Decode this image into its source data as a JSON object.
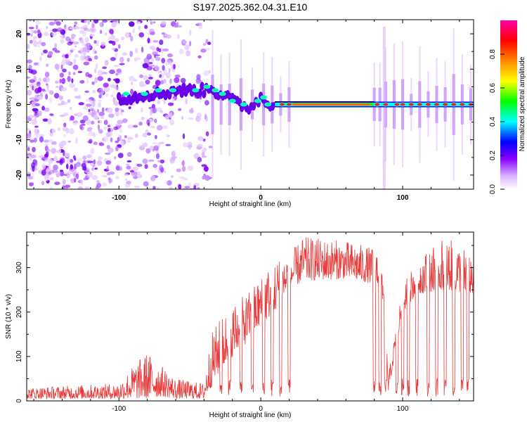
{
  "figure_title": "S197.2025.362.04.31.E10",
  "chart_data": [
    {
      "type": "heatmap",
      "name": "spectrogram",
      "xlabel": "Height of straight line (km)",
      "ylabel": "Frequency (Hz)",
      "xlim": [
        -165,
        150
      ],
      "ylim": [
        -24,
        24
      ],
      "xticks": [
        -100,
        0,
        100
      ],
      "xtick_labels": [
        "-100",
        "0",
        "100"
      ],
      "yticks": [
        20,
        10,
        0,
        -10,
        -20
      ],
      "ytick_labels": [
        "20",
        "10",
        "0",
        "-10",
        "-20"
      ],
      "colorbar": {
        "label": "Normalized spectral amplitude",
        "range": [
          0,
          1
        ],
        "ticks": [
          0.0,
          0.2,
          0.4,
          0.6,
          0.8
        ],
        "tick_labels": [
          "0.0",
          "0.2",
          "0.4",
          "0.6",
          "0.8"
        ],
        "colors": [
          "#ffffff",
          "#cc88ff",
          "#8800ff",
          "#0000ff",
          "#00ffff",
          "#00ff00",
          "#ffff00",
          "#ff8800",
          "#ff0000",
          "#ff00aa"
        ]
      },
      "description_features": {
        "noise_region_x": [
          -165,
          -40
        ],
        "carrier_region_x": [
          -40,
          150
        ],
        "steady_carrier_x": [
          15,
          80
        ],
        "carrier_track": [
          {
            "x": -100,
            "f": 2
          },
          {
            "x": -90,
            "f": 2
          },
          {
            "x": -80,
            "f": 3
          },
          {
            "x": -70,
            "f": 3
          },
          {
            "x": -60,
            "f": 4
          },
          {
            "x": -50,
            "f": 4
          },
          {
            "x": -40,
            "f": 4
          },
          {
            "x": -35,
            "f": 5
          },
          {
            "x": -30,
            "f": 3
          },
          {
            "x": -25,
            "f": 3
          },
          {
            "x": -20,
            "f": 1
          },
          {
            "x": -15,
            "f": 0
          },
          {
            "x": -10,
            "f": -1
          },
          {
            "x": -5,
            "f": 0
          },
          {
            "x": 0,
            "f": 2
          },
          {
            "x": 5,
            "f": 0
          },
          {
            "x": 10,
            "f": 0
          },
          {
            "x": 150,
            "f": 0
          }
        ]
      }
    },
    {
      "type": "line",
      "name": "snr",
      "xlabel": "Height of straight line (km)",
      "ylabel": "SNR (10 * v/v)",
      "xlim": [
        -165,
        150
      ],
      "ylim": [
        0,
        380
      ],
      "xticks": [
        -100,
        0,
        100
      ],
      "xtick_labels": [
        "-100",
        "0",
        "100"
      ],
      "yticks": [
        0,
        100,
        200,
        300
      ],
      "ytick_labels": [
        "0",
        "100",
        "200",
        "300"
      ],
      "color": "#e83a3a",
      "envelope": [
        {
          "x": -165,
          "lo": 5,
          "hi": 30
        },
        {
          "x": -100,
          "lo": 5,
          "hi": 40
        },
        {
          "x": -90,
          "lo": 5,
          "hi": 80
        },
        {
          "x": -80,
          "lo": 5,
          "hi": 110
        },
        {
          "x": -70,
          "lo": 10,
          "hi": 80
        },
        {
          "x": -60,
          "lo": 5,
          "hi": 50
        },
        {
          "x": -40,
          "lo": 5,
          "hi": 40
        },
        {
          "x": -35,
          "lo": 30,
          "hi": 150
        },
        {
          "x": -30,
          "lo": 60,
          "hi": 180
        },
        {
          "x": -20,
          "lo": 100,
          "hi": 220
        },
        {
          "x": -10,
          "lo": 130,
          "hi": 240
        },
        {
          "x": 0,
          "lo": 170,
          "hi": 280
        },
        {
          "x": 10,
          "lo": 200,
          "hi": 320
        },
        {
          "x": 20,
          "lo": 250,
          "hi": 330
        },
        {
          "x": 30,
          "lo": 270,
          "hi": 370
        },
        {
          "x": 60,
          "lo": 275,
          "hi": 360
        },
        {
          "x": 85,
          "lo": 260,
          "hi": 340
        },
        {
          "x": 90,
          "lo": 20,
          "hi": 60
        },
        {
          "x": 100,
          "lo": 200,
          "hi": 260
        },
        {
          "x": 110,
          "lo": 240,
          "hi": 320
        },
        {
          "x": 130,
          "lo": 250,
          "hi": 370
        },
        {
          "x": 150,
          "lo": 240,
          "hi": 330
        }
      ],
      "dropouts": [
        -28,
        -22,
        -14,
        -6,
        2,
        8,
        14,
        20,
        80,
        84,
        88,
        96,
        100,
        104,
        110,
        118,
        124,
        130,
        136,
        142,
        146
      ]
    }
  ]
}
